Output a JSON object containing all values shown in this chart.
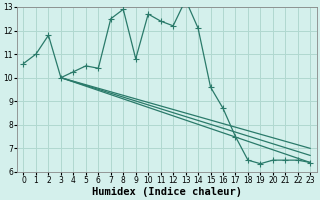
{
  "xlabel": "Humidex (Indice chaleur)",
  "bg_color": "#d4f0ec",
  "grid_color": "#b0d8d0",
  "line_color": "#2a7a6a",
  "xlim": [
    -0.5,
    23.5
  ],
  "ylim": [
    6,
    13
  ],
  "xtick_labels": [
    "0",
    "1",
    "2",
    "3",
    "4",
    "5",
    "6",
    "7",
    "8",
    "9",
    "10",
    "11",
    "12",
    "13",
    "14",
    "15",
    "16",
    "17",
    "18",
    "19",
    "20",
    "21",
    "22",
    "23"
  ],
  "yticks": [
    6,
    7,
    8,
    9,
    10,
    11,
    12,
    13
  ],
  "main_x": [
    0,
    1,
    2,
    3,
    4,
    5,
    6,
    7,
    8,
    9,
    10,
    11,
    12,
    13,
    14,
    15,
    16,
    17,
    18,
    19,
    20,
    21,
    22,
    23
  ],
  "main_y": [
    10.6,
    11.0,
    11.8,
    10.0,
    10.25,
    10.5,
    10.4,
    12.5,
    12.9,
    10.8,
    12.7,
    12.4,
    12.2,
    13.3,
    12.1,
    9.6,
    8.7,
    7.5,
    6.5,
    6.35,
    6.5,
    6.5,
    6.5,
    6.4
  ],
  "line2_x": [
    3,
    23
  ],
  "line2_y": [
    10.0,
    7.0
  ],
  "line3_x": [
    3,
    23
  ],
  "line3_y": [
    10.0,
    6.7
  ],
  "line4_x": [
    3,
    23
  ],
  "line4_y": [
    10.0,
    6.4
  ],
  "marker_size": 2.5,
  "line_width": 0.9,
  "fontsize_xlabel": 7.5,
  "fontsize_ticks": 5.5
}
